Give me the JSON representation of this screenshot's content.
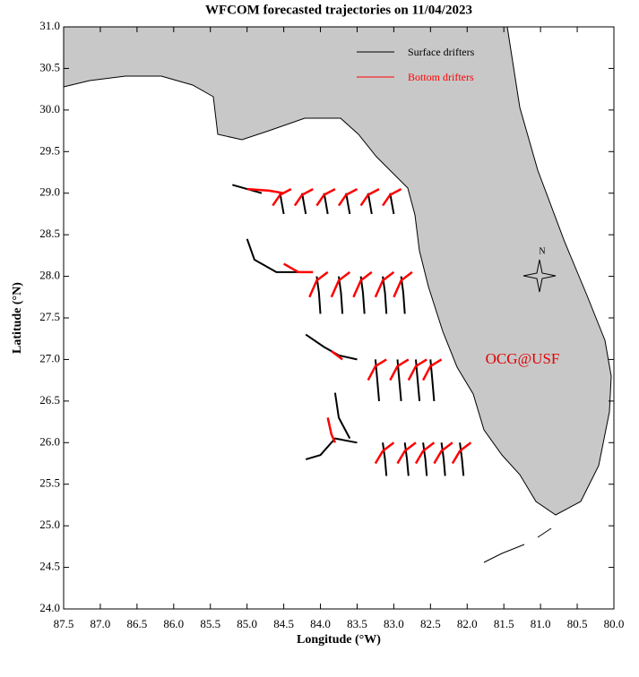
{
  "chart_data": {
    "type": "line",
    "title": "WFCOM forecasted trajectories on 11/04/2023",
    "x_label": "Longitude (°W)",
    "y_label": "Latitude (°N)",
    "annotation": "OCG@USF",
    "compass_label": "N",
    "legend": "top-right",
    "xlim": [
      87.5,
      80.0
    ],
    "ylim": [
      24.0,
      31.0
    ],
    "xticks": [
      87.5,
      {
        "value": 87,
        "label": "87.0"
      },
      86.5,
      {
        "value": 86,
        "label": "86.0"
      },
      85.5,
      {
        "value": 85,
        "label": "85.0"
      },
      84.5,
      {
        "value": 84,
        "label": "84.0"
      },
      83.5,
      {
        "value": 83,
        "label": "83.0"
      },
      82.5,
      {
        "value": 82,
        "label": "82.0"
      },
      81.5,
      {
        "value": 81,
        "label": "81.0"
      },
      80.5,
      {
        "value": 80,
        "label": "80.0"
      }
    ],
    "yticks": [
      {
        "value": 24,
        "label": "24.0"
      },
      24.5,
      {
        "value": 25,
        "label": "25.0"
      },
      25.5,
      {
        "value": 26,
        "label": "26.0"
      },
      26.5,
      {
        "value": 27,
        "label": "27.0"
      },
      27.5,
      {
        "value": 28,
        "label": "28.0"
      },
      28.5,
      {
        "value": 29,
        "label": "29.0"
      },
      29.5,
      {
        "value": 30,
        "label": "30.0"
      },
      30.5,
      {
        "value": 31,
        "label": "31.0"
      }
    ],
    "series": [
      {
        "name": "Surface drifters",
        "color": "#000000",
        "x": [
          85.2,
          85.0,
          84.8,
          null,
          84.55,
          84.53,
          84.5,
          null,
          84.25,
          84.23,
          84.2,
          null,
          83.95,
          83.93,
          83.9,
          null,
          83.65,
          83.63,
          83.6,
          null,
          83.35,
          83.33,
          83.3,
          null,
          83.05,
          83.03,
          83.0,
          null,
          85.0,
          84.9,
          84.6,
          84.3,
          null,
          84.05,
          84.02,
          84.0,
          null,
          83.75,
          83.72,
          83.7,
          null,
          83.45,
          83.42,
          83.4,
          null,
          83.15,
          83.12,
          83.1,
          null,
          82.9,
          82.87,
          82.85,
          null,
          84.2,
          83.95,
          83.75,
          83.5,
          null,
          83.25,
          83.23,
          83.2,
          null,
          82.95,
          82.93,
          82.9,
          null,
          82.7,
          82.68,
          82.65,
          null,
          82.5,
          82.48,
          82.45,
          null,
          84.2,
          84.0,
          83.8,
          83.5,
          null,
          83.8,
          83.75,
          83.6,
          null,
          83.15,
          83.12,
          83.1,
          null,
          82.85,
          82.82,
          82.8,
          null,
          82.6,
          82.57,
          82.55,
          null,
          82.35,
          82.32,
          82.3,
          null,
          82.1,
          82.07,
          82.05
        ],
        "y": [
          29.1,
          29.05,
          29.0,
          null,
          29.0,
          28.9,
          28.75,
          null,
          29.0,
          28.9,
          28.75,
          null,
          29.0,
          28.9,
          28.75,
          null,
          29.0,
          28.9,
          28.75,
          null,
          29.0,
          28.9,
          28.75,
          null,
          29.0,
          28.9,
          28.75,
          null,
          28.45,
          28.2,
          28.05,
          28.05,
          null,
          28.0,
          27.8,
          27.55,
          null,
          28.0,
          27.8,
          27.55,
          null,
          28.0,
          27.8,
          27.55,
          null,
          28.0,
          27.8,
          27.55,
          null,
          28.0,
          27.8,
          27.55,
          null,
          27.3,
          27.15,
          27.05,
          27.0,
          null,
          27.0,
          26.8,
          26.5,
          null,
          27.0,
          26.8,
          26.5,
          null,
          27.0,
          26.8,
          26.5,
          null,
          27.0,
          26.8,
          26.5,
          null,
          25.8,
          25.85,
          26.05,
          26.0,
          null,
          26.6,
          26.3,
          26.05,
          null,
          26.0,
          25.8,
          25.6,
          null,
          26.0,
          25.8,
          25.6,
          null,
          26.0,
          25.8,
          25.6,
          null,
          26.0,
          25.8,
          25.6,
          null,
          26.0,
          25.8,
          25.6
        ]
      },
      {
        "name": "Bottom drifters",
        "color": "#ff0000",
        "x": [
          85.0,
          84.7,
          84.5,
          null,
          84.4,
          84.55,
          84.65,
          null,
          84.1,
          84.25,
          84.35,
          null,
          83.8,
          83.95,
          84.05,
          null,
          83.5,
          83.65,
          83.75,
          null,
          83.2,
          83.35,
          83.45,
          null,
          82.9,
          83.05,
          83.15,
          null,
          84.5,
          84.3,
          84.1,
          null,
          83.9,
          84.05,
          84.15,
          null,
          83.6,
          83.75,
          83.85,
          null,
          83.3,
          83.45,
          83.55,
          null,
          83.0,
          83.15,
          83.25,
          null,
          82.75,
          82.9,
          83.0,
          null,
          83.85,
          83.7,
          null,
          83.1,
          83.25,
          83.35,
          null,
          82.8,
          82.95,
          83.05,
          null,
          82.55,
          82.7,
          82.8,
          null,
          82.35,
          82.5,
          82.6,
          null,
          83.9,
          83.85,
          83.8,
          null,
          83.0,
          83.15,
          83.25,
          null,
          82.7,
          82.85,
          82.95,
          null,
          82.45,
          82.6,
          82.7,
          null,
          82.2,
          82.35,
          82.45,
          null,
          81.95,
          82.1,
          82.2
        ],
        "y": [
          29.05,
          29.03,
          29.0,
          null,
          29.05,
          28.98,
          28.85,
          null,
          29.05,
          28.98,
          28.85,
          null,
          29.05,
          28.98,
          28.85,
          null,
          29.05,
          28.98,
          28.85,
          null,
          29.05,
          28.98,
          28.85,
          null,
          29.05,
          28.98,
          28.85,
          null,
          28.15,
          28.05,
          28.05,
          null,
          28.05,
          27.95,
          27.75,
          null,
          28.05,
          27.95,
          27.75,
          null,
          28.05,
          27.95,
          27.75,
          null,
          28.05,
          27.95,
          27.75,
          null,
          28.05,
          27.95,
          27.75,
          null,
          27.1,
          27.0,
          null,
          27.0,
          26.92,
          26.75,
          null,
          27.0,
          26.92,
          26.75,
          null,
          27.0,
          26.92,
          26.75,
          null,
          27.0,
          26.92,
          26.75,
          null,
          26.3,
          26.1,
          26.0,
          null,
          26.0,
          25.9,
          25.75,
          null,
          26.0,
          25.9,
          25.75,
          null,
          26.0,
          25.9,
          25.75,
          null,
          26.0,
          25.9,
          25.75,
          null,
          26.0,
          25.9,
          25.75
        ]
      }
    ]
  }
}
